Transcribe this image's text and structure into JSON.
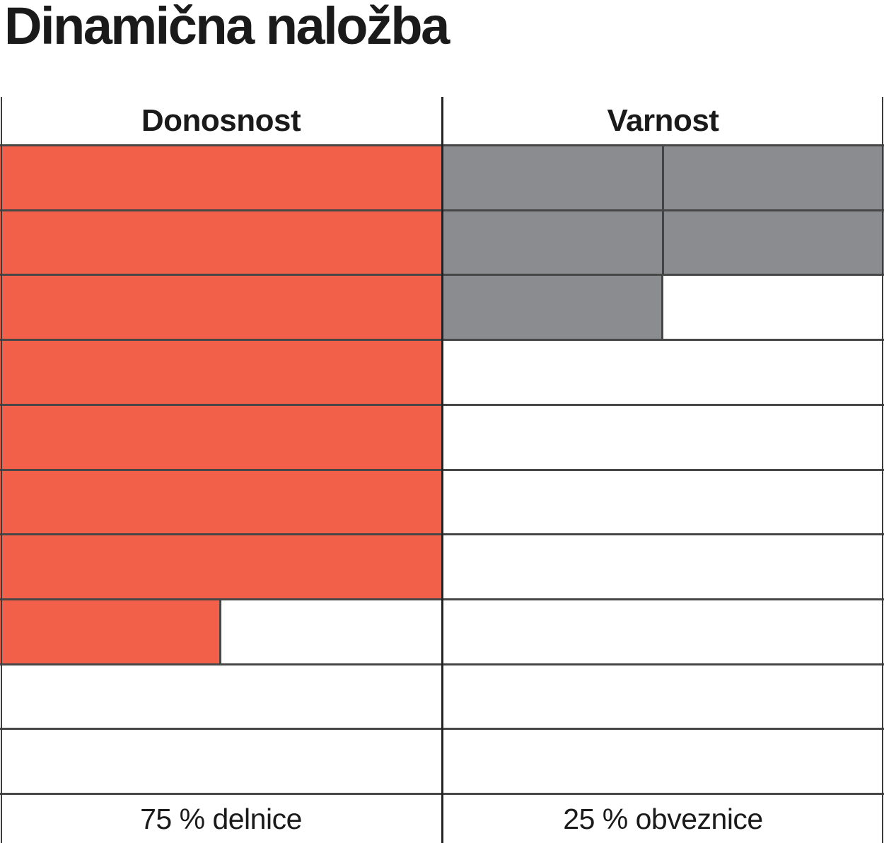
{
  "page": {
    "title": "Dinamična naložba"
  },
  "chart_data": {
    "type": "table",
    "title": "Dinamična naložba",
    "description": "Rating grid: 10 stacked rows per column filled top-down; full cell = 1 point, half-width cell = 0.5 point",
    "rows": 10,
    "columns": [
      {
        "id": "donosnost",
        "header": "Donosnost",
        "footer": "75 % delnice",
        "score": 7.5,
        "max": 10,
        "fill_color": "#F2604A",
        "split_full_cells": false
      },
      {
        "id": "varnost",
        "header": "Varnost",
        "footer": "25 % obveznice",
        "score": 2.5,
        "max": 10,
        "fill_color": "#8A8C8F",
        "split_full_cells": true
      }
    ],
    "allocation": {
      "delnice_pct": 75,
      "obveznice_pct": 25
    },
    "colors": {
      "donosnost_fill": "#F2604A",
      "varnost_fill": "#8A8C8F",
      "row_line": "#474747",
      "mid_divider": "#202224",
      "edge_line": "#3C3C3C",
      "sub_divider": "#3F4347",
      "text": "#1A1A1A",
      "background": "#FFFFFF"
    },
    "legend_position": "bottom",
    "grid": true
  }
}
